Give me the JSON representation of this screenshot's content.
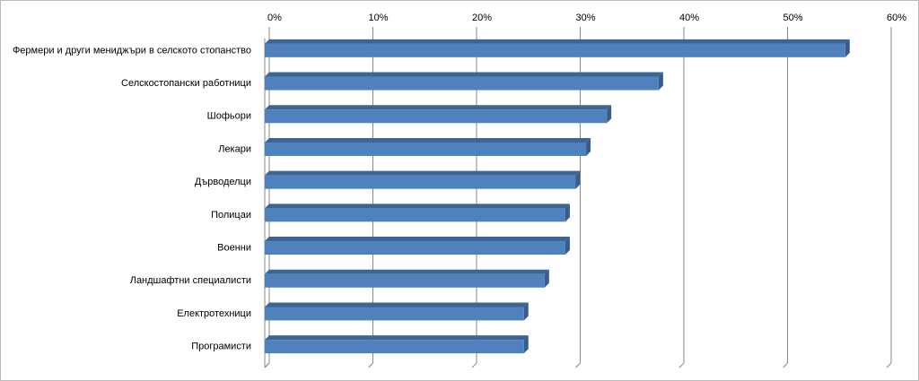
{
  "chart_data": {
    "type": "bar",
    "orientation": "horizontal",
    "categories": [
      "Фермери  и други мениджъри  в селското стопанство",
      "Селскостопански работници",
      "Шофьори",
      "Лекари",
      "Дърводелци",
      "Полицаи",
      "Военни",
      "Ландшафтни специалисти",
      "Електротехници",
      "Програмисти"
    ],
    "values": [
      56,
      38,
      33,
      31,
      30,
      29,
      29,
      27,
      25,
      25
    ],
    "color": "#4f81bd",
    "xlim": [
      0,
      60
    ],
    "xticks": [
      {
        "value": 0,
        "label": "0%"
      },
      {
        "value": 10,
        "label": "10%"
      },
      {
        "value": 20,
        "label": "20%"
      },
      {
        "value": 30,
        "label": "30%"
      },
      {
        "value": 40,
        "label": "40%"
      },
      {
        "value": 50,
        "label": "50%"
      },
      {
        "value": 60,
        "label": "60%"
      }
    ],
    "grid": true
  }
}
